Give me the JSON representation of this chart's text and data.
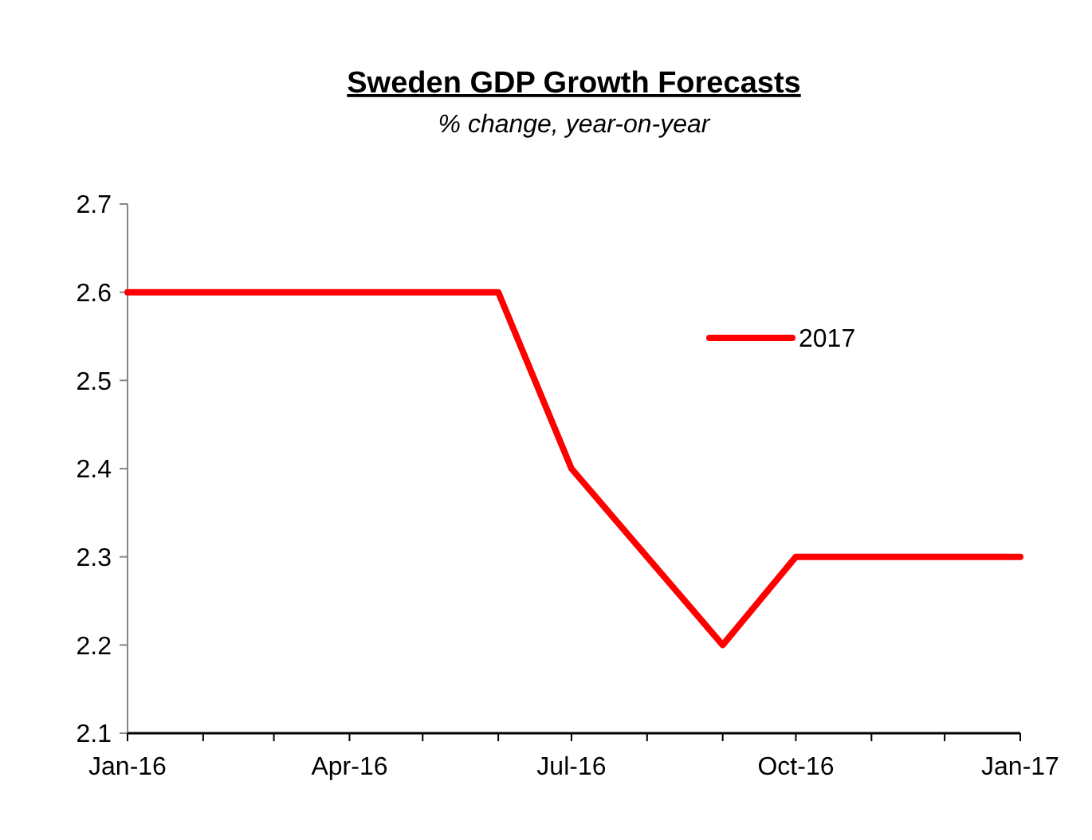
{
  "chart_data": {
    "type": "line",
    "title": "Sweden GDP Growth Forecasts",
    "subtitle": "% change, year-on-year",
    "x": [
      "2016-01",
      "2016-06",
      "2016-07",
      "2016-09",
      "2016-10",
      "2017-01"
    ],
    "series": [
      {
        "name": "2017",
        "color": "#ff0000",
        "values": [
          2.6,
          2.6,
          2.4,
          2.2,
          2.3,
          2.3
        ]
      }
    ],
    "xlim": [
      "2016-01",
      "2017-01"
    ],
    "xticks": [
      {
        "value": "2016-01",
        "label": "Jan-16"
      },
      {
        "value": "2016-02",
        "label": null
      },
      {
        "value": "2016-03",
        "label": null
      },
      {
        "value": "2016-04",
        "label": "Apr-16"
      },
      {
        "value": "2016-05",
        "label": null
      },
      {
        "value": "2016-06",
        "label": null
      },
      {
        "value": "2016-07",
        "label": "Jul-16"
      },
      {
        "value": "2016-08",
        "label": null
      },
      {
        "value": "2016-09",
        "label": null
      },
      {
        "value": "2016-10",
        "label": "Oct-16"
      },
      {
        "value": "2016-11",
        "label": null
      },
      {
        "value": "2016-12",
        "label": null
      },
      {
        "value": "2017-01",
        "label": "Jan-17"
      }
    ],
    "ylim": [
      2.1,
      2.7
    ],
    "yticks": [
      2.1,
      2.2,
      2.3,
      2.4,
      2.5,
      2.6,
      2.7
    ],
    "grid": false,
    "legend": "top right",
    "marker": "none",
    "line_style": "solid"
  }
}
